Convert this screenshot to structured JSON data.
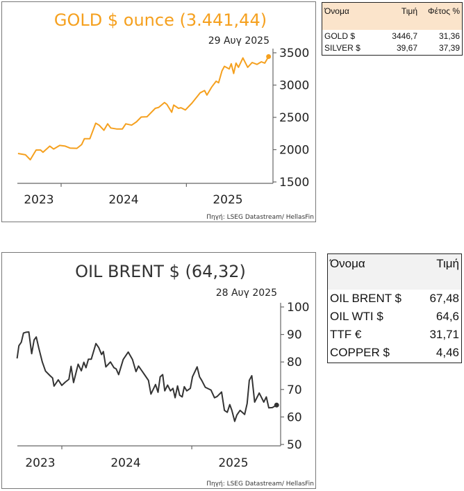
{
  "chart_data": [
    {
      "type": "line",
      "title": "GOLD $ ounce (3.441,44)",
      "date_label": "29 Αυγ 2025",
      "source": "Πηγή: LSEG Datastream/ HellasFin",
      "color": "#f5a01e",
      "ylim": [
        1500,
        3500
      ],
      "y_ticks": [
        "3500",
        "3000",
        "2500",
        "2000",
        "1500"
      ],
      "x_tick_labels": [
        "2023",
        "2024",
        "2025"
      ],
      "last_value": 3441.44,
      "x": [
        "2023-08-28",
        "2023-09-19",
        "2023-10-03",
        "2023-10-20",
        "2023-11-02",
        "2023-11-09",
        "2023-11-29",
        "2023-12-10",
        "2023-12-28",
        "2024-01-13",
        "2024-01-27",
        "2024-02-16",
        "2024-03-01",
        "2024-03-09",
        "2024-03-25",
        "2024-04-11",
        "2024-04-21",
        "2024-05-05",
        "2024-05-16",
        "2024-05-25",
        "2024-06-11",
        "2024-06-28",
        "2024-07-08",
        "2024-07-25",
        "2024-08-08",
        "2024-08-22",
        "2024-09-08",
        "2024-10-02",
        "2024-10-12",
        "2024-10-29",
        "2024-11-05",
        "2024-11-19",
        "2024-11-25",
        "2024-12-09",
        "2024-12-16",
        "2024-12-29",
        "2025-01-17",
        "2025-02-10",
        "2025-02-23",
        "2025-03-02",
        "2025-03-16",
        "2025-03-29",
        "2025-04-05",
        "2025-04-15",
        "2025-04-22",
        "2025-05-06",
        "2025-05-12",
        "2025-05-19",
        "2025-05-26",
        "2025-06-02",
        "2025-06-15",
        "2025-06-29",
        "2025-07-12",
        "2025-07-26",
        "2025-08-08",
        "2025-08-18",
        "2025-08-29"
      ],
      "y": [
        1941,
        1920,
        1844,
        1995,
        1995,
        1960,
        2055,
        2010,
        2066,
        2055,
        2025,
        2020,
        2080,
        2170,
        2170,
        2410,
        2380,
        2300,
        2400,
        2335,
        2320,
        2320,
        2400,
        2380,
        2430,
        2505,
        2510,
        2640,
        2655,
        2730,
        2700,
        2580,
        2690,
        2640,
        2650,
        2615,
        2720,
        2880,
        2915,
        2845,
        2970,
        3060,
        3035,
        3220,
        3290,
        3250,
        3330,
        3180,
        3340,
        3275,
        3420,
        3275,
        3350,
        3320,
        3360,
        3340,
        3441
      ]
    },
    {
      "type": "line",
      "title": "OIL BRENT $ (64,32)",
      "date_label": "28 Αυγ 2025",
      "source": "Πηγή: LSEG Datastream/ HellasFin",
      "color": "#333333",
      "ylim": [
        50,
        100
      ],
      "y_ticks": [
        "100",
        "90",
        "80",
        "70",
        "60",
        "50"
      ],
      "x_tick_labels": [
        "2023",
        "2024",
        "2025"
      ],
      "last_value": 64.32,
      "x": [
        "2023-08-28",
        "2023-09-02",
        "2023-09-09",
        "2023-09-15",
        "2023-09-22",
        "2023-09-30",
        "2023-10-08",
        "2023-10-15",
        "2023-10-21",
        "2023-10-28",
        "2023-11-07",
        "2023-11-16",
        "2023-11-29",
        "2023-12-06",
        "2023-12-10",
        "2023-12-22",
        "2024-01-01",
        "2024-01-11",
        "2024-01-21",
        "2024-01-27",
        "2024-02-03",
        "2024-02-16",
        "2024-02-25",
        "2024-03-03",
        "2024-03-09",
        "2024-03-16",
        "2024-03-24",
        "2024-04-06",
        "2024-04-14",
        "2024-04-22",
        "2024-04-27",
        "2024-05-04",
        "2024-05-17",
        "2024-05-27",
        "2024-06-02",
        "2024-06-09",
        "2024-06-22",
        "2024-07-06",
        "2024-07-18",
        "2024-07-28",
        "2024-08-04",
        "2024-08-14",
        "2024-08-23",
        "2024-09-01",
        "2024-09-08",
        "2024-09-21",
        "2024-09-28",
        "2024-10-04",
        "2024-10-11",
        "2024-10-17",
        "2024-10-25",
        "2024-11-02",
        "2024-11-09",
        "2024-11-15",
        "2024-11-22",
        "2024-11-28",
        "2024-12-05",
        "2024-12-11",
        "2024-12-18",
        "2024-12-28",
        "2025-01-03",
        "2025-01-16",
        "2025-01-23",
        "2025-01-29",
        "2025-02-08",
        "2025-02-24",
        "2025-03-06",
        "2025-03-13",
        "2025-03-26",
        "2025-04-03",
        "2025-04-11",
        "2025-04-18",
        "2025-04-24",
        "2025-05-02",
        "2025-05-08",
        "2025-05-17",
        "2025-05-30",
        "2025-06-06",
        "2025-06-12",
        "2025-06-19",
        "2025-06-27",
        "2025-07-10",
        "2025-07-23",
        "2025-07-30",
        "2025-08-06",
        "2025-08-16",
        "2025-08-28"
      ],
      "y": [
        81.3,
        85.9,
        87.2,
        90.5,
        90.8,
        90.9,
        83.0,
        88.0,
        89.1,
        85.1,
        80.0,
        76.7,
        75.0,
        74.2,
        71.2,
        73.5,
        71.5,
        72.7,
        73.7,
        78.4,
        72.5,
        79.2,
        76.8,
        79.9,
        77.9,
        81.0,
        81.0,
        86.7,
        85.2,
        82.7,
        83.8,
        78.2,
        80.0,
        77.9,
        77.5,
        75.4,
        80.9,
        83.6,
        80.9,
        76.5,
        78.5,
        76.7,
        75.0,
        73.3,
        68.3,
        71.8,
        69.0,
        74.6,
        75.4,
        69.5,
        71.6,
        69.5,
        70.4,
        67.0,
        71.3,
        67.9,
        67.3,
        71.0,
        69.5,
        70.4,
        74.6,
        78.2,
        74.6,
        73.3,
        70.8,
        69.8,
        67.0,
        67.4,
        69.1,
        62.4,
        61.7,
        64.5,
        62.4,
        58.4,
        60.7,
        62.4,
        60.9,
        64.9,
        73.3,
        75.0,
        65.4,
        68.7,
        65.4,
        67.3,
        63.3,
        63.4,
        64.32
      ]
    }
  ],
  "table_metals": {
    "headers": [
      "Όνομα",
      "Τιμή",
      "Φέτος %"
    ],
    "rows": [
      [
        "GOLD $",
        "3446,7",
        "31,36"
      ],
      [
        "SILVER $",
        "39,67",
        "37,39"
      ]
    ]
  },
  "table_energy": {
    "headers": [
      "Όνομα",
      "Τιμή"
    ],
    "rows": [
      [
        "OIL BRENT $",
        "67,48"
      ],
      [
        "OIL WTI $",
        "64,6"
      ],
      [
        "TTF €",
        "31,71"
      ],
      [
        "COPPER $",
        "4,46"
      ]
    ]
  }
}
